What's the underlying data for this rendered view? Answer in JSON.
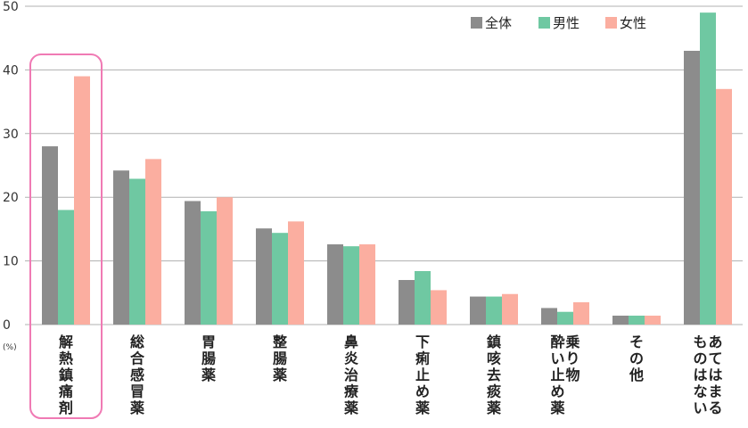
{
  "chart_data": {
    "type": "bar",
    "y_unit": "(%)",
    "ylim": [
      0,
      50
    ],
    "yticks": [
      0,
      10,
      20,
      30,
      40,
      50
    ],
    "grid": true,
    "legend_position": "top-right",
    "highlighted_category": "解熱鎮痛剤",
    "categories": [
      {
        "columns": [
          "解熱鎮痛剤"
        ]
      },
      {
        "columns": [
          "総合感冒薬"
        ]
      },
      {
        "columns": [
          "胃腸薬"
        ]
      },
      {
        "columns": [
          "整腸薬"
        ]
      },
      {
        "columns": [
          "鼻炎治療薬"
        ]
      },
      {
        "columns": [
          "下痢止め薬"
        ]
      },
      {
        "columns": [
          "鎮咳去痰薬"
        ]
      },
      {
        "columns": [
          "乗り物",
          "酔い止め薬"
        ]
      },
      {
        "columns": [
          "その他"
        ]
      },
      {
        "columns": [
          "あてはまる",
          "ものはない"
        ]
      }
    ],
    "series": [
      {
        "name": "全体",
        "color": "#8c8c8c",
        "values": [
          28.0,
          24.2,
          19.4,
          15.1,
          12.6,
          7.0,
          4.4,
          2.6,
          1.4,
          43.0
        ]
      },
      {
        "name": "男性",
        "color": "#6fc8a2",
        "values": [
          18.0,
          22.9,
          17.8,
          14.4,
          12.3,
          8.4,
          4.4,
          2.0,
          1.4,
          49.0
        ]
      },
      {
        "name": "女性",
        "color": "#fbaea0",
        "values": [
          39.0,
          26.0,
          20.0,
          16.2,
          12.6,
          5.4,
          4.8,
          3.5,
          1.4,
          37.0
        ]
      }
    ],
    "highlight_color": "#f07ab4",
    "grid_color": "#b0b0b0"
  }
}
